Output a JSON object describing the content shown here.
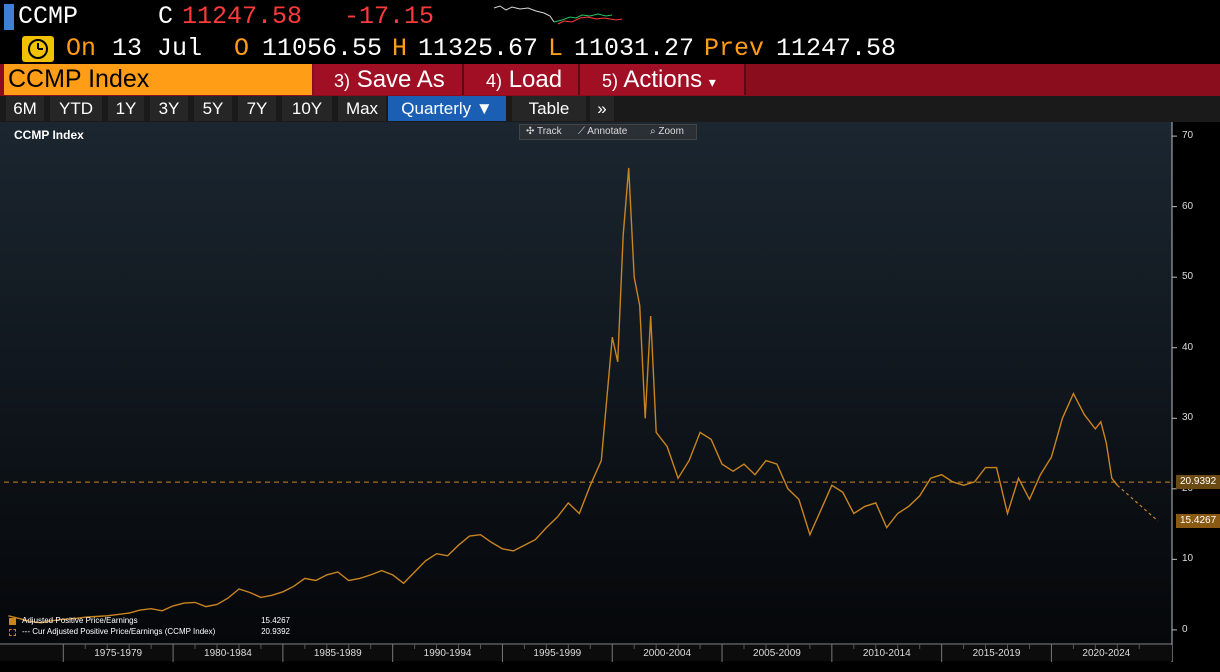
{
  "header": {
    "ticker": "CCMP",
    "c_label": "C",
    "last": "11247.58",
    "change": "-17.15",
    "on_label": "On",
    "date": "13 Jul",
    "open_label": "O",
    "open": "11056.55",
    "high_label": "H",
    "high": "11325.67",
    "low_label": "L",
    "low": "11031.27",
    "prev_label": "Prev",
    "prev": "11247.58",
    "clock_icon": "clock-icon"
  },
  "menu": {
    "security": "CCMP Index",
    "save_num": "3)",
    "save_label": "Save As",
    "load_num": "4)",
    "load_label": "Load",
    "actions_num": "5)",
    "actions_label": "Actions",
    "actions_caret": "▾"
  },
  "periods": {
    "items": [
      "6M",
      "YTD",
      "1Y",
      "3Y",
      "5Y",
      "7Y",
      "10Y",
      "Max"
    ],
    "frequency": "Quarterly ▼",
    "table": "Table",
    "more": "»"
  },
  "tools": {
    "track": "✣ Track",
    "annotate": "⟋ Annotate",
    "zoom": "⌕ Zoom"
  },
  "colors": {
    "accent_orange": "#ff9d17",
    "series": "#c9841f",
    "menu_red": "#8a0d1e",
    "up_green": "#22c55e",
    "down_red": "#ff3a3a"
  },
  "chart_data": {
    "type": "line",
    "title": "CCMP Index",
    "y_ticks": [
      "0",
      "10",
      "20",
      "30",
      "40",
      "50",
      "60",
      "70"
    ],
    "ylim": [
      -2,
      72
    ],
    "xlim": [
      1972.3,
      2025.4
    ],
    "x_tick_labels": [
      "1975-1979",
      "1980-1984",
      "1985-1989",
      "1990-1994",
      "1995-1999",
      "2000-2004",
      "2005-2009",
      "2010-2014",
      "2015-2019",
      "2020-2024"
    ],
    "grid": false,
    "legend_position": "bottom-left",
    "series": [
      {
        "name": "Adjusted Positive Price/Earnings",
        "last_value": "15.4267",
        "x": [
          1972.5,
          1973.0,
          1973.5,
          1974.0,
          1974.5,
          1975.0,
          1975.5,
          1976.0,
          1976.5,
          1977.0,
          1977.5,
          1978.0,
          1978.5,
          1979.0,
          1979.5,
          1980.0,
          1980.5,
          1981.0,
          1981.5,
          1982.0,
          1982.5,
          1983.0,
          1983.5,
          1984.0,
          1984.5,
          1985.0,
          1985.5,
          1986.0,
          1986.5,
          1987.0,
          1987.5,
          1988.0,
          1988.5,
          1989.0,
          1989.5,
          1990.0,
          1990.5,
          1991.0,
          1991.5,
          1992.0,
          1992.5,
          1993.0,
          1993.5,
          1994.0,
          1994.5,
          1995.0,
          1995.5,
          1996.0,
          1996.5,
          1997.0,
          1997.5,
          1998.0,
          1998.5,
          1999.0,
          1999.5,
          2000.0,
          2000.25,
          2000.5,
          2000.75,
          2001.0,
          2001.25,
          2001.5,
          2001.75,
          2002.0,
          2002.5,
          2003.0,
          2003.5,
          2004.0,
          2004.5,
          2005.0,
          2005.5,
          2006.0,
          2006.5,
          2007.0,
          2007.5,
          2008.0,
          2008.5,
          2009.0,
          2009.5,
          2010.0,
          2010.5,
          2011.0,
          2011.5,
          2012.0,
          2012.5,
          2013.0,
          2013.5,
          2014.0,
          2014.5,
          2015.0,
          2015.5,
          2016.0,
          2016.5,
          2017.0,
          2017.5,
          2018.0,
          2018.5,
          2019.0,
          2019.5,
          2020.0,
          2020.5,
          2021.0,
          2021.5,
          2022.0,
          2022.25,
          2022.5,
          2022.75,
          2023.0
        ],
        "values": [
          2.0,
          1.6,
          1.2,
          1.0,
          1.3,
          1.5,
          1.6,
          1.8,
          1.9,
          2.0,
          2.2,
          2.4,
          2.8,
          3.0,
          2.7,
          3.4,
          3.8,
          3.9,
          3.3,
          3.6,
          4.5,
          5.8,
          5.3,
          4.6,
          4.9,
          5.4,
          6.2,
          7.3,
          7.0,
          7.8,
          8.2,
          7.0,
          7.3,
          7.8,
          8.4,
          7.8,
          6.6,
          8.2,
          9.8,
          10.8,
          10.5,
          12.0,
          13.3,
          13.5,
          12.4,
          11.5,
          11.2,
          12.0,
          12.8,
          14.5,
          16.0,
          18.0,
          16.5,
          20.5,
          24.0,
          41.5,
          38.0,
          56.0,
          65.5,
          50.0,
          46.0,
          30.0,
          44.5,
          28.0,
          26.0,
          21.5,
          24.0,
          28.0,
          27.0,
          23.5,
          22.5,
          23.5,
          22.0,
          24.0,
          23.5,
          20.0,
          18.5,
          13.5,
          17.0,
          20.5,
          19.5,
          16.5,
          17.5,
          18.0,
          14.5,
          16.5,
          17.5,
          19.0,
          21.5,
          22.0,
          21.0,
          20.5,
          21.0,
          23.0,
          23.0,
          16.5,
          21.5,
          18.5,
          22.0,
          24.5,
          30.0,
          33.5,
          30.5,
          28.5,
          29.5,
          26.5,
          21.5,
          20.5
        ]
      },
      {
        "name": "--- Cur Adjusted Positive Price/Earnings (CCMP Index)",
        "last_value": "20.9392",
        "value": 20.9392
      }
    ]
  }
}
